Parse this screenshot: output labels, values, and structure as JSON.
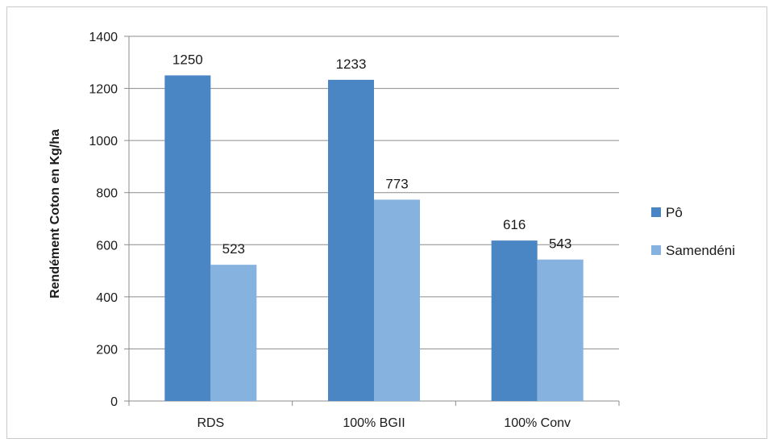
{
  "chart_data": {
    "type": "bar",
    "categories": [
      "RDS",
      "100% BGII",
      "100% Conv"
    ],
    "series": [
      {
        "name": "Pô",
        "values": [
          1250,
          1233,
          616
        ],
        "color": "#4a86c4"
      },
      {
        "name": "Samendéni",
        "values": [
          523,
          773,
          543
        ],
        "color": "#86b2df"
      }
    ],
    "data_labels": [
      [
        "1250",
        "1233",
        "616"
      ],
      [
        "523",
        "773",
        "543"
      ]
    ],
    "ylabel": "Rendément Coton en Kg/ha",
    "ylim": [
      0,
      1400
    ],
    "yticks": [
      0,
      200,
      400,
      600,
      800,
      1000,
      1200,
      1400
    ],
    "grid": true,
    "legend_position": "right"
  }
}
